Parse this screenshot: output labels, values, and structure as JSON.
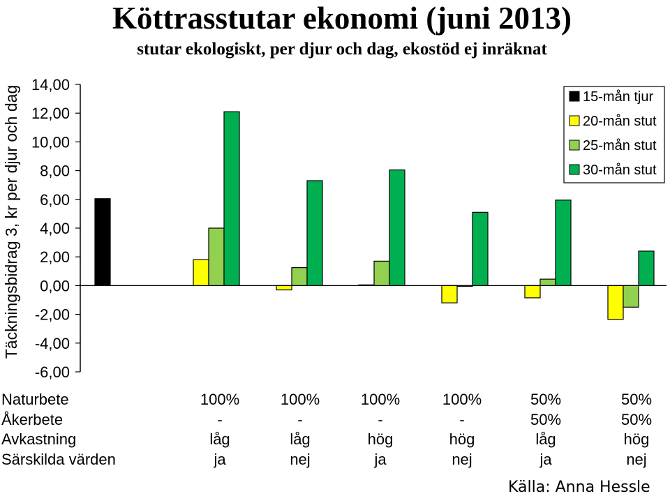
{
  "chart_data": {
    "type": "bar",
    "title": "Köttrasstutar ekonomi (juni 2013)",
    "subtitle": "stutar ekologiskt, per djur och dag, ekostöd ej inräknat",
    "ylabel": "Täckningsbidrag 3, kr per djur och dag",
    "ylim": [
      -6,
      14
    ],
    "yticks": [
      "14,00",
      "12,00",
      "10,00",
      "8,00",
      "6,00",
      "4,00",
      "2,00",
      "0,00",
      "-2,00",
      "-4,00",
      "-6,00"
    ],
    "ytick_values": [
      14,
      12,
      10,
      8,
      6,
      4,
      2,
      0,
      -2,
      -4,
      -6
    ],
    "grid": false,
    "legend_position": "top-right",
    "series": [
      {
        "name": "15-mån tjur",
        "color": "#000000",
        "values": [
          6.05,
          null,
          null,
          null,
          null,
          null,
          null
        ]
      },
      {
        "name": "20-mån stut",
        "color": "#ffff00",
        "values": [
          null,
          1.8,
          -0.3,
          0.05,
          -1.2,
          -0.85,
          -2.35
        ]
      },
      {
        "name": "25-mån stut",
        "color": "#92d050",
        "values": [
          null,
          4.0,
          1.25,
          1.7,
          -0.05,
          0.45,
          -1.5
        ]
      },
      {
        "name": "30-mån stut",
        "color": "#00b050",
        "values": [
          null,
          12.1,
          7.3,
          8.05,
          5.1,
          5.95,
          2.4
        ]
      }
    ],
    "conditions": {
      "labels": [
        "Naturbete",
        "Åkerbete",
        "Avkastning",
        "Särskilda värden"
      ],
      "groups": [
        [
          "100%",
          "-",
          "låg",
          "ja"
        ],
        [
          "100%",
          "-",
          "låg",
          "nej"
        ],
        [
          "100%",
          "-",
          "hög",
          "ja"
        ],
        [
          "100%",
          "-",
          "hög",
          "nej"
        ],
        [
          "50%",
          "50%",
          "låg",
          "ja"
        ],
        [
          "50%",
          "50%",
          "hög",
          "nej"
        ]
      ]
    }
  },
  "source": "Källa: Anna Hessle"
}
